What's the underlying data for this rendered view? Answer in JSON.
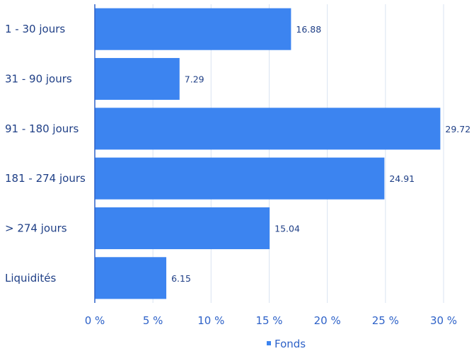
{
  "chart_data": {
    "type": "bar",
    "orientation": "horizontal",
    "categories": [
      "1 - 30 jours",
      "31 - 90 jours",
      "91 - 180 jours",
      "181 - 274 jours",
      "> 274 jours",
      "Liquidités"
    ],
    "series": [
      {
        "name": "Fonds",
        "values": [
          16.88,
          7.29,
          29.72,
          24.91,
          15.04,
          6.15
        ],
        "color": "#3c84f0"
      }
    ],
    "data_labels": [
      "16.88",
      "7.29",
      "29.72",
      "24.91",
      "15.04",
      "6.15"
    ],
    "x_ticks": [
      "0 %",
      "5 %",
      "10 %",
      "15 %",
      "20 %",
      "25 %",
      "30 %"
    ],
    "xlim": [
      0,
      30
    ],
    "grid": "vertical",
    "legend": {
      "position": "bottom-center",
      "entries": [
        "Fonds"
      ]
    },
    "colors": {
      "bar": "#3c84f0",
      "axis": "#2e62c8",
      "grid": "#d9e3f1",
      "text": "#1f3f86"
    }
  }
}
